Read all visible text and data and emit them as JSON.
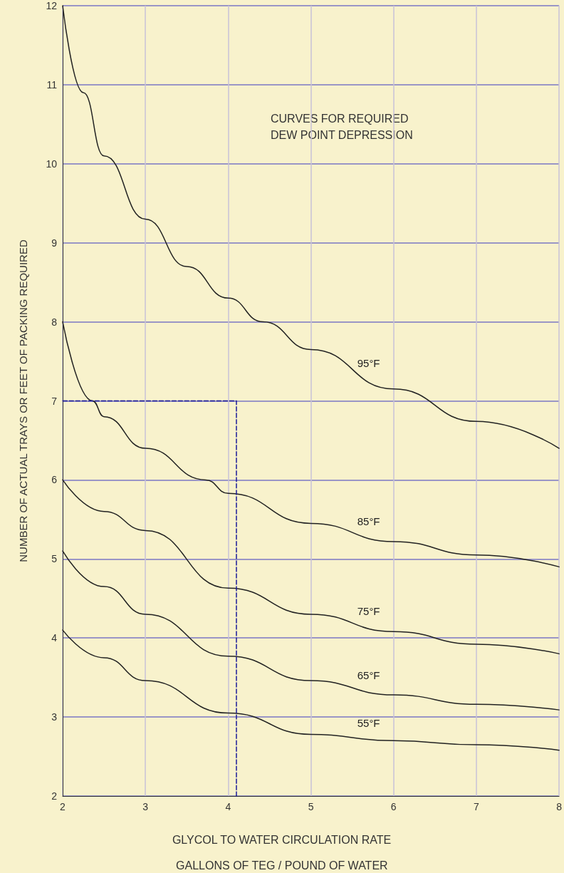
{
  "chart_data": {
    "type": "line",
    "xlabel": "GLYCOL TO WATER CIRCULATION RATE\nGALLONS OF TEG / POUND OF WATER",
    "ylabel": "NUMBER OF ACTUAL TRAYS OR FEET OF PACKING REQUIRED",
    "xlim": [
      2,
      8
    ],
    "ylim": [
      2,
      12
    ],
    "xticks": [
      2,
      3,
      4,
      5,
      6,
      7,
      8
    ],
    "yticks": [
      2,
      3,
      4,
      5,
      6,
      7,
      8,
      9,
      10,
      11,
      12
    ],
    "grid": true,
    "marker": "none",
    "line_style": "solid",
    "series": [
      {
        "name": "95°F",
        "color": "#222222",
        "x": [
          2,
          2.25,
          2.5,
          3,
          3.5,
          4,
          4.42,
          5,
          6,
          7,
          8
        ],
        "values": [
          12,
          10.9,
          10.1,
          9.3,
          8.7,
          8.3,
          8,
          7.65,
          7.15,
          6.74,
          6.4
        ]
      },
      {
        "name": "85°F",
        "color": "#222222",
        "x": [
          2,
          2.36,
          2.5,
          3,
          3.73,
          4,
          5,
          6,
          7,
          8
        ],
        "values": [
          8,
          7,
          6.8,
          6.4,
          6,
          5.83,
          5.45,
          5.22,
          5.05,
          4.9
        ]
      },
      {
        "name": "75°F",
        "color": "#222222",
        "x": [
          2,
          2.5,
          3,
          4,
          5,
          6,
          7,
          8
        ],
        "values": [
          6,
          5.6,
          5.36,
          4.63,
          4.3,
          4.08,
          3.92,
          3.8
        ]
      },
      {
        "name": "65°F",
        "color": "#222222",
        "x": [
          2,
          2.5,
          3,
          4,
          5,
          6,
          7,
          8
        ],
        "values": [
          5.1,
          4.65,
          4.3,
          3.77,
          3.46,
          3.28,
          3.16,
          3.09
        ]
      },
      {
        "name": "55°F",
        "color": "#222222",
        "x": [
          2,
          2.5,
          3,
          4,
          5,
          6,
          7,
          8
        ],
        "values": [
          4.1,
          3.75,
          3.46,
          3.05,
          2.78,
          2.7,
          2.65,
          2.58
        ]
      },
      {
        "color": "#1a1a99",
        "line_style": "dashed",
        "x": [
          4.1,
          4.1,
          2
        ],
        "values": [
          2,
          7,
          7
        ]
      }
    ],
    "annotations": [
      "CURVES FOR REQUIRED\nDEW POINT DEPRESSION"
    ]
  }
}
